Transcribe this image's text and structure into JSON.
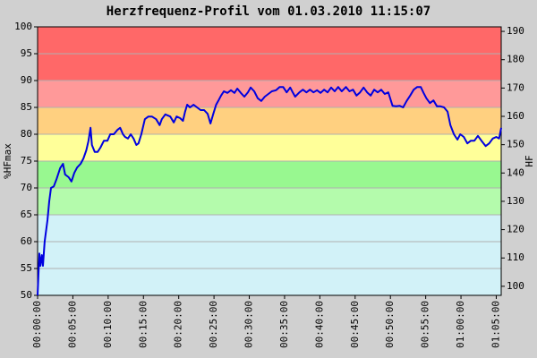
{
  "chart_data": {
    "type": "line",
    "title": "Herzfrequenz-Profil vom 01.03.2010 11:15:07",
    "y_label": "%HFmax",
    "y2_label": "HF",
    "x": [
      0,
      0.25,
      0.4,
      0.6,
      0.76,
      1.0,
      1.4,
      1.65,
      1.9,
      2.3,
      2.7,
      3.2,
      3.6,
      3.9,
      4.4,
      4.8,
      5.2,
      5.6,
      6.1,
      6.5,
      6.9,
      7.2,
      7.5,
      7.7,
      8.1,
      8.5,
      8.9,
      9.4,
      9.9,
      10.3,
      10.8,
      11.3,
      11.7,
      12.1,
      12.4,
      12.8,
      13.2,
      13.6,
      14.0,
      14.3,
      14.7,
      15.2,
      15.7,
      16.2,
      16.8,
      17.3,
      17.6,
      18.1,
      18.8,
      19.3,
      19.7,
      20.2,
      20.6,
      20.9,
      21.2,
      21.6,
      22.1,
      22.6,
      23.1,
      23.6,
      24.1,
      24.5,
      24.9,
      25.3,
      25.6,
      26.0,
      26.4,
      26.9,
      27.4,
      27.9,
      28.3,
      28.8,
      29.3,
      29.8,
      30.2,
      30.7,
      31.2,
      31.7,
      32.2,
      32.7,
      33.2,
      33.8,
      34.3,
      34.8,
      35.3,
      35.8,
      36.2,
      36.5,
      37.1,
      37.6,
      38.1,
      38.6,
      39.1,
      39.6,
      40.1,
      40.6,
      41.1,
      41.6,
      42.1,
      42.6,
      43.1,
      43.7,
      44.2,
      44.7,
      45.2,
      45.7,
      46.2,
      46.7,
      47.2,
      47.7,
      48.2,
      48.7,
      49.2,
      49.7,
      50.3,
      50.8,
      51.3,
      51.8,
      52.3,
      52.8,
      53.3,
      53.8,
      54.3,
      54.7,
      55.1,
      55.6,
      56.1,
      56.6,
      57.1,
      57.6,
      58.1,
      58.5,
      59.0,
      59.5,
      59.9,
      60.4,
      60.9,
      61.4,
      61.9,
      62.4,
      62.9,
      63.5,
      64.0,
      64.5,
      65.0,
      65.4,
      65.7
    ],
    "series": [
      {
        "color": "#0000e0",
        "values": [
          50,
          57.8,
          55.5,
          57.5,
          55.5,
          60,
          64,
          67.5,
          70,
          70.3,
          71.7,
          73.7,
          74.5,
          72.5,
          72,
          71.2,
          72.8,
          73.8,
          74.5,
          75.5,
          77,
          78.7,
          81.2,
          78,
          76.7,
          76.7,
          77.5,
          78.8,
          78.8,
          80,
          80,
          80.8,
          81.2,
          80,
          79.5,
          79.2,
          80,
          79.2,
          78,
          78.3,
          80,
          82.8,
          83.3,
          83.3,
          82.8,
          81.7,
          82.8,
          83.7,
          83.3,
          82.2,
          83.3,
          83,
          82.5,
          84.2,
          85.5,
          85,
          85.5,
          85,
          84.5,
          84.5,
          83.8,
          82,
          83.8,
          85.5,
          86.2,
          87.2,
          88,
          87.7,
          88.2,
          87.7,
          88.5,
          87.7,
          87,
          87.8,
          88.7,
          88,
          86.7,
          86.2,
          87,
          87.5,
          88,
          88.2,
          88.8,
          88.8,
          87.8,
          88.7,
          87.7,
          87,
          87.8,
          88.3,
          87.8,
          88.3,
          87.8,
          88.2,
          87.7,
          88.3,
          87.8,
          88.7,
          88,
          88.8,
          88,
          88.8,
          88,
          88.3,
          87.2,
          87.8,
          88.7,
          87.8,
          87.2,
          88.3,
          87.8,
          88.3,
          87.5,
          87.8,
          85.3,
          85.2,
          85.3,
          85,
          86.2,
          87.2,
          88.3,
          88.8,
          88.8,
          87.7,
          86.7,
          85.8,
          86.3,
          85.2,
          85.2,
          85,
          84.2,
          81.7,
          80,
          79,
          80,
          79.5,
          78.3,
          78.8,
          78.8,
          79.7,
          78.8,
          77.8,
          78.3,
          79.2,
          79.5,
          79.2,
          81.2
        ]
      }
    ],
    "xlim": [
      0,
      65.7
    ],
    "xticks": [
      {
        "value": 0,
        "label": "00:00:00"
      },
      {
        "value": 5,
        "label": "00:05:00"
      },
      {
        "value": 10,
        "label": "00:10:00"
      },
      {
        "value": 15,
        "label": "00:15:00"
      },
      {
        "value": 20,
        "label": "00:20:00"
      },
      {
        "value": 25,
        "label": "00:25:00"
      },
      {
        "value": 30,
        "label": "00:30:00"
      },
      {
        "value": 35,
        "label": "00:35:00"
      },
      {
        "value": 40,
        "label": "00:40:00"
      },
      {
        "value": 45,
        "label": "00:45:00"
      },
      {
        "value": 50,
        "label": "00:50:00"
      },
      {
        "value": 55,
        "label": "00:55:00"
      },
      {
        "value": 60,
        "label": "01:00:00"
      },
      {
        "value": 65,
        "label": "01:05:00"
      }
    ],
    "ylim": [
      50,
      100
    ],
    "yticks": [
      50,
      55,
      60,
      65,
      70,
      75,
      80,
      85,
      90,
      95,
      100
    ],
    "y2lim": [
      96.8,
      191.6
    ],
    "y2ticks": [
      100,
      110,
      120,
      130,
      140,
      150,
      160,
      170,
      180,
      190
    ],
    "grid": true,
    "zones": [
      {
        "from": 50,
        "to": 65,
        "color": "#d2f2f8"
      },
      {
        "from": 65,
        "to": 70,
        "color": "#b4fbac"
      },
      {
        "from": 70,
        "to": 75,
        "color": "#98f890"
      },
      {
        "from": 75,
        "to": 80,
        "color": "#ffff99"
      },
      {
        "from": 80,
        "to": 85,
        "color": "#ffd080"
      },
      {
        "from": 85,
        "to": 90,
        "color": "#ff9999"
      },
      {
        "from": 90,
        "to": 100,
        "color": "#ff6868"
      }
    ]
  }
}
